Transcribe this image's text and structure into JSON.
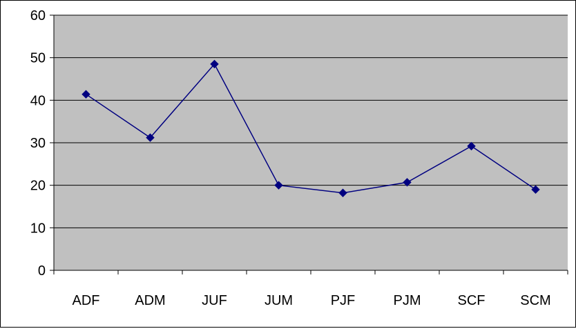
{
  "chart_data": {
    "type": "line",
    "categories": [
      "ADF",
      "ADM",
      "JUF",
      "JUM",
      "PJF",
      "PJM",
      "SCF",
      "SCM"
    ],
    "series": [
      {
        "values": [
          41.4,
          31.2,
          48.5,
          20.0,
          18.2,
          20.7,
          29.2,
          19.0
        ]
      }
    ],
    "ylim": [
      0,
      60
    ],
    "yticks": [
      0,
      10,
      20,
      30,
      40,
      50,
      60
    ],
    "grid": true,
    "legend": "none",
    "colors": {
      "plot_background": "#c0c0c0",
      "series_line": "#000080",
      "gridline": "#000000"
    }
  }
}
